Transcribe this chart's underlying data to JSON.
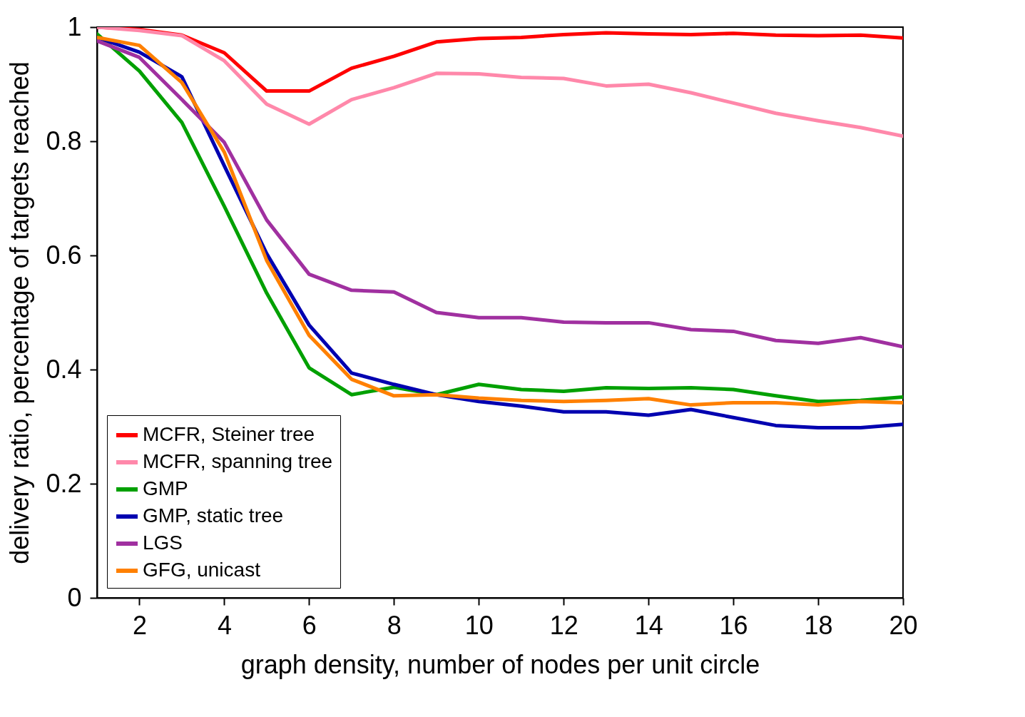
{
  "chart_data": {
    "type": "line",
    "xlabel": "graph density, number of nodes per unit circle",
    "ylabel": "delivery ratio, percentage of targets reached",
    "x": [
      1,
      2,
      3,
      4,
      5,
      6,
      7,
      8,
      9,
      10,
      11,
      12,
      13,
      14,
      15,
      16,
      17,
      18,
      19,
      20
    ],
    "xlim": [
      1,
      20
    ],
    "xticks": [
      2,
      4,
      6,
      8,
      10,
      12,
      14,
      16,
      18,
      20
    ],
    "ylim": [
      0,
      1
    ],
    "yticks": [
      0,
      0.2,
      0.4,
      0.6,
      0.8,
      1
    ],
    "grid": false,
    "legend": "bottom left",
    "marker": "none",
    "line_style": "solid",
    "series": [
      {
        "name": "MCFR, Steiner tree",
        "color": "#ff0000",
        "values": [
          1.0,
          0.996,
          0.986,
          0.955,
          0.888,
          0.888,
          0.928,
          0.949,
          0.974,
          0.98,
          0.982,
          0.987,
          0.99,
          0.988,
          0.987,
          0.989,
          0.986,
          0.985,
          0.986,
          0.981
        ]
      },
      {
        "name": "MCFR, spanning tree",
        "color": "#ff88aa",
        "values": [
          1.0,
          0.994,
          0.985,
          0.941,
          0.865,
          0.83,
          0.873,
          0.894,
          0.919,
          0.918,
          0.912,
          0.91,
          0.897,
          0.9,
          0.885,
          0.867,
          0.849,
          0.836,
          0.824,
          0.809
        ]
      },
      {
        "name": "GMP",
        "color": "#00a000",
        "values": [
          0.988,
          0.923,
          0.833,
          0.686,
          0.534,
          0.403,
          0.356,
          0.369,
          0.356,
          0.374,
          0.365,
          0.362,
          0.368,
          0.367,
          0.368,
          0.365,
          0.354,
          0.344,
          0.346,
          0.352
        ]
      },
      {
        "name": "GMP, static tree",
        "color": "#0000b0",
        "values": [
          0.982,
          0.956,
          0.913,
          0.757,
          0.603,
          0.478,
          0.394,
          0.374,
          0.356,
          0.344,
          0.336,
          0.326,
          0.326,
          0.32,
          0.33,
          0.316,
          0.302,
          0.298,
          0.298,
          0.304
        ]
      },
      {
        "name": "LGS",
        "color": "#a030a0",
        "values": [
          0.976,
          0.947,
          0.873,
          0.798,
          0.662,
          0.567,
          0.539,
          0.536,
          0.5,
          0.491,
          0.491,
          0.483,
          0.482,
          0.482,
          0.47,
          0.467,
          0.451,
          0.446,
          0.456,
          0.44
        ]
      },
      {
        "name": "GFG, unicast",
        "color": "#ff8000",
        "values": [
          0.982,
          0.968,
          0.903,
          0.781,
          0.591,
          0.46,
          0.383,
          0.354,
          0.356,
          0.35,
          0.346,
          0.344,
          0.346,
          0.349,
          0.338,
          0.342,
          0.342,
          0.338,
          0.344,
          0.342
        ]
      }
    ]
  }
}
